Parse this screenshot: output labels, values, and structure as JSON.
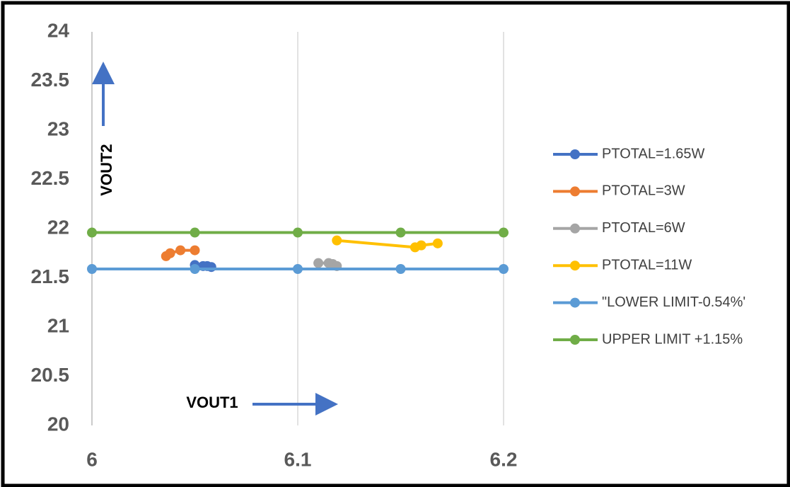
{
  "chart_data": {
    "type": "line",
    "x_numeric": true,
    "series": [
      {
        "name": "PTOTAL=1.65W",
        "color": "#4472c4",
        "x": [
          6.05,
          6.054,
          6.056,
          6.058
        ],
        "values": [
          21.63,
          21.62,
          21.62,
          21.61
        ]
      },
      {
        "name": "PTOTAL=3W",
        "color": "#ed7d31",
        "x": [
          6.036,
          6.038,
          6.043,
          6.05
        ],
        "values": [
          21.72,
          21.75,
          21.78,
          21.78
        ]
      },
      {
        "name": "PTOTAL=6W",
        "color": "#a5a5a5",
        "x": [
          6.11,
          6.115,
          6.117,
          6.119
        ],
        "values": [
          21.65,
          21.65,
          21.64,
          21.62
        ]
      },
      {
        "name": "PTOTAL=11W",
        "color": "#ffc000",
        "x": [
          6.119,
          6.157,
          6.16,
          6.168
        ],
        "values": [
          21.88,
          21.81,
          21.83,
          21.85
        ]
      },
      {
        "name": "\"LOWER LIMIT-0.54%'",
        "color": "#5b9bd5",
        "x": [
          6,
          6.05,
          6.1,
          6.15,
          6.2
        ],
        "values": [
          21.59,
          21.59,
          21.59,
          21.59,
          21.59
        ]
      },
      {
        "name": "UPPER LIMIT +1.15%",
        "color": "#70ad47",
        "x": [
          6,
          6.05,
          6.1,
          6.15,
          6.2
        ],
        "values": [
          21.96,
          21.96,
          21.96,
          21.96,
          21.96
        ]
      }
    ],
    "xlim": [
      6,
      6.2
    ],
    "xticks": [
      6,
      6.1,
      6.2
    ],
    "ylim": [
      20,
      24
    ],
    "yticks": [
      20,
      20.5,
      21,
      21.5,
      22,
      22.5,
      23,
      23.5,
      24
    ],
    "x_grid": true,
    "legend": "right",
    "annotations": [
      "VOUT2",
      "VOUT1"
    ]
  }
}
